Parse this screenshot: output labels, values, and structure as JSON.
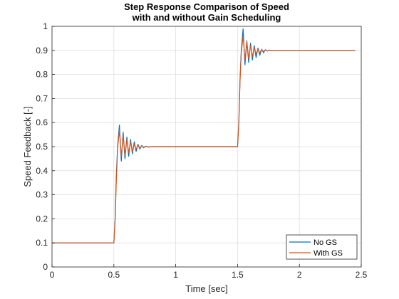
{
  "chart_data": {
    "type": "line",
    "title": [
      "Step Response Comparison of Speed",
      "with and without Gain Scheduling"
    ],
    "xlabel": "Time [sec]",
    "ylabel": "Speed Feedback [-]",
    "xlim": [
      0,
      2.5
    ],
    "ylim": [
      0,
      1
    ],
    "xticks": [
      0,
      0.5,
      1,
      1.5,
      2,
      2.5
    ],
    "xtick_labels": [
      "0",
      "0.5",
      "1",
      "1.5",
      "2",
      "2.5"
    ],
    "yticks": [
      0,
      0.1,
      0.2,
      0.3,
      0.4,
      0.5,
      0.6,
      0.7,
      0.8,
      0.9,
      1
    ],
    "ytick_labels": [
      "0",
      "0.1",
      "0.2",
      "0.3",
      "0.4",
      "0.5",
      "0.6",
      "0.7",
      "0.8",
      "0.9",
      "1"
    ],
    "grid": true,
    "legend_position": "bottom-right",
    "series": [
      {
        "name": "No GS",
        "color": "#0072BD",
        "x": [
          0,
          0.5,
          0.51,
          0.52,
          0.53,
          0.545,
          0.56,
          0.575,
          0.59,
          0.605,
          0.62,
          0.635,
          0.65,
          0.665,
          0.68,
          0.695,
          0.71,
          0.725,
          0.74,
          0.76,
          0.78,
          0.8,
          0.85,
          1.5,
          1.51,
          1.52,
          1.53,
          1.545,
          1.56,
          1.575,
          1.59,
          1.605,
          1.62,
          1.635,
          1.65,
          1.665,
          1.68,
          1.695,
          1.71,
          1.725,
          1.74,
          1.76,
          1.78,
          1.8,
          1.85,
          2.45
        ],
        "y": [
          0.1,
          0.1,
          0.2,
          0.38,
          0.5,
          0.59,
          0.44,
          0.56,
          0.45,
          0.54,
          0.46,
          0.53,
          0.47,
          0.52,
          0.48,
          0.51,
          0.49,
          0.505,
          0.495,
          0.502,
          0.498,
          0.5,
          0.5,
          0.5,
          0.6,
          0.78,
          0.9,
          0.99,
          0.84,
          0.94,
          0.85,
          0.93,
          0.86,
          0.92,
          0.87,
          0.91,
          0.88,
          0.905,
          0.89,
          0.903,
          0.897,
          0.901,
          0.899,
          0.9,
          0.9,
          0.9
        ]
      },
      {
        "name": "With GS",
        "color": "#D95319",
        "x": [
          0,
          0.5,
          0.51,
          0.52,
          0.53,
          0.545,
          0.56,
          0.575,
          0.59,
          0.605,
          0.62,
          0.635,
          0.65,
          0.665,
          0.68,
          0.695,
          0.71,
          0.725,
          0.74,
          0.76,
          0.78,
          0.8,
          0.85,
          1.5,
          1.51,
          1.52,
          1.53,
          1.545,
          1.56,
          1.575,
          1.59,
          1.605,
          1.62,
          1.635,
          1.65,
          1.665,
          1.68,
          1.695,
          1.71,
          1.725,
          1.74,
          1.76,
          1.78,
          1.8,
          1.85,
          2.45
        ],
        "y": [
          0.1,
          0.1,
          0.19,
          0.36,
          0.49,
          0.57,
          0.46,
          0.545,
          0.465,
          0.53,
          0.475,
          0.52,
          0.48,
          0.51,
          0.49,
          0.505,
          0.495,
          0.502,
          0.498,
          0.501,
          0.499,
          0.5,
          0.5,
          0.5,
          0.59,
          0.77,
          0.89,
          0.96,
          0.86,
          0.935,
          0.865,
          0.92,
          0.875,
          0.91,
          0.885,
          0.905,
          0.89,
          0.903,
          0.895,
          0.902,
          0.898,
          0.901,
          0.899,
          0.9,
          0.9,
          0.9
        ]
      }
    ]
  }
}
